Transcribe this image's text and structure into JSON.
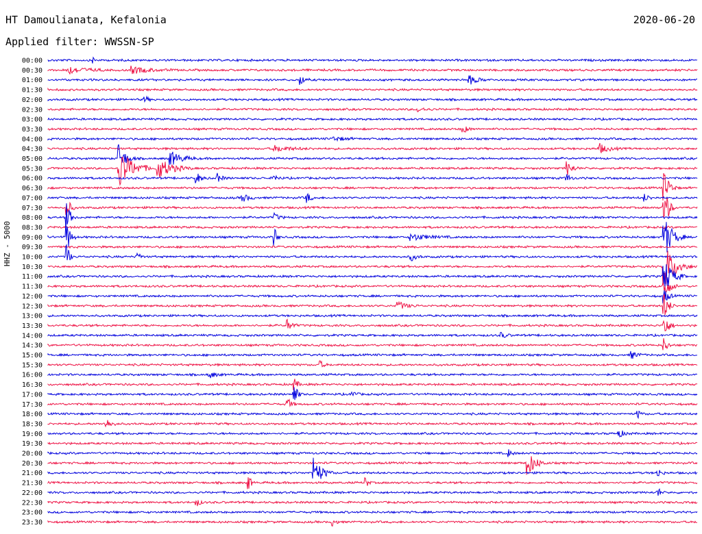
{
  "header": {
    "station": "HT Damoulianata, Kefalonia",
    "date": "2020-06-20",
    "filter": "Applied filter: WWSSN-SP"
  },
  "axis": {
    "channel_label": "HHZ - 5000"
  },
  "colors": {
    "trace_a": "#0000dd",
    "trace_b": "#ee1144"
  },
  "rows": [
    {
      "time": "00:00",
      "color": "blue"
    },
    {
      "time": "00:30",
      "color": "red"
    },
    {
      "time": "01:00",
      "color": "blue"
    },
    {
      "time": "01:30",
      "color": "red"
    },
    {
      "time": "02:00",
      "color": "blue"
    },
    {
      "time": "02:30",
      "color": "red"
    },
    {
      "time": "03:00",
      "color": "blue"
    },
    {
      "time": "03:30",
      "color": "red"
    },
    {
      "time": "04:00",
      "color": "blue"
    },
    {
      "time": "04:30",
      "color": "red"
    },
    {
      "time": "05:00",
      "color": "blue"
    },
    {
      "time": "05:30",
      "color": "red"
    },
    {
      "time": "06:00",
      "color": "blue"
    },
    {
      "time": "06:30",
      "color": "red"
    },
    {
      "time": "07:00",
      "color": "blue"
    },
    {
      "time": "07:30",
      "color": "red"
    },
    {
      "time": "08:00",
      "color": "blue"
    },
    {
      "time": "08:30",
      "color": "red"
    },
    {
      "time": "09:00",
      "color": "blue"
    },
    {
      "time": "09:30",
      "color": "red"
    },
    {
      "time": "10:00",
      "color": "blue"
    },
    {
      "time": "10:30",
      "color": "red"
    },
    {
      "time": "11:00",
      "color": "blue"
    },
    {
      "time": "11:30",
      "color": "red"
    },
    {
      "time": "12:00",
      "color": "blue"
    },
    {
      "time": "12:30",
      "color": "red"
    },
    {
      "time": "13:00",
      "color": "blue"
    },
    {
      "time": "13:30",
      "color": "red"
    },
    {
      "time": "14:00",
      "color": "blue"
    },
    {
      "time": "14:30",
      "color": "red"
    },
    {
      "time": "15:00",
      "color": "blue"
    },
    {
      "time": "15:30",
      "color": "red"
    },
    {
      "time": "16:00",
      "color": "blue"
    },
    {
      "time": "16:30",
      "color": "red"
    },
    {
      "time": "17:00",
      "color": "blue"
    },
    {
      "time": "17:30",
      "color": "red"
    },
    {
      "time": "18:00",
      "color": "blue"
    },
    {
      "time": "18:30",
      "color": "red"
    },
    {
      "time": "19:00",
      "color": "blue"
    },
    {
      "time": "19:30",
      "color": "red"
    },
    {
      "time": "20:00",
      "color": "blue"
    },
    {
      "time": "20:30",
      "color": "red"
    },
    {
      "time": "21:00",
      "color": "blue"
    },
    {
      "time": "21:30",
      "color": "red"
    },
    {
      "time": "22:00",
      "color": "blue"
    },
    {
      "time": "22:30",
      "color": "red"
    },
    {
      "time": "23:00",
      "color": "blue"
    },
    {
      "time": "23:30",
      "color": "red"
    }
  ]
}
